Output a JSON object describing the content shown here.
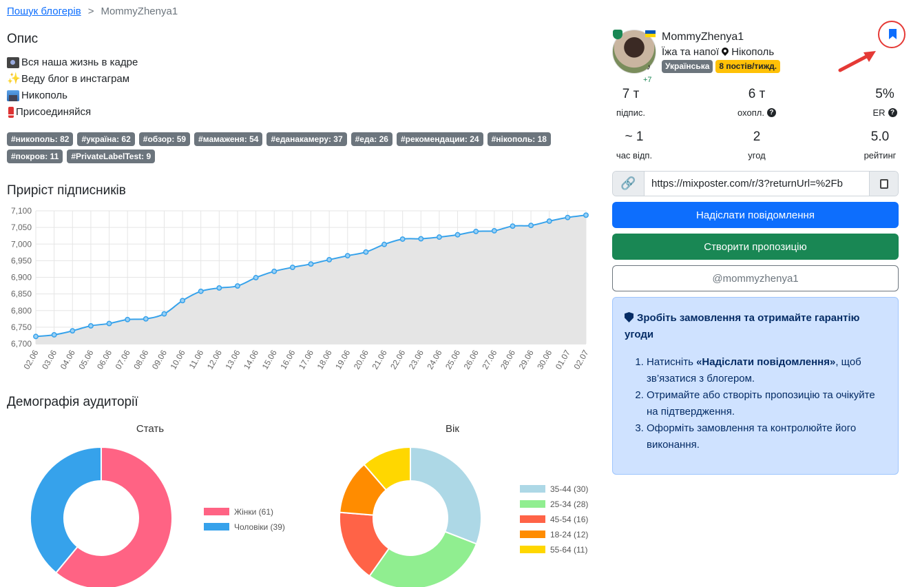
{
  "breadcrumb": {
    "link": "Пошук блогерів",
    "sep": ">",
    "current": "MommyZhenya1"
  },
  "description": {
    "title": "Опис",
    "lines": [
      {
        "icon": "camera-icon",
        "text": "Вся наша жизнь в кадре"
      },
      {
        "icon": "sparkles-icon",
        "text": "Веду блог в инстаграм"
      },
      {
        "icon": "cityscape-icon",
        "text": "Никополь"
      },
      {
        "icon": "exclamation-icon",
        "text": "Присоединяйся"
      }
    ]
  },
  "tags": [
    "#никополь: 82",
    "#україна: 62",
    "#обзор: 59",
    "#мамаженя: 54",
    "#еданакамеру: 37",
    "#еда: 26",
    "#рекомендации: 24",
    "#нікополь: 18",
    "#покров: 11",
    "#PrivateLabelTest: 9"
  ],
  "growth": {
    "title": "Приріст підписників"
  },
  "chart_data": [
    {
      "type": "area",
      "title": "Приріст підписників",
      "x": [
        "02.06",
        "03.06",
        "04.06",
        "05.06",
        "06.06",
        "07.06",
        "08.06",
        "09.06",
        "10.06",
        "11.06",
        "12.06",
        "13.06",
        "14.06",
        "15.06",
        "16.06",
        "17.06",
        "18.06",
        "19.06",
        "20.06",
        "21.06",
        "22.06",
        "23.06",
        "24.06",
        "25.06",
        "26.06",
        "27.06",
        "28.06",
        "29.06",
        "30.06",
        "01.07",
        "02.07"
      ],
      "series": [
        {
          "values": [
            6722,
            6727,
            6739,
            6754,
            6761,
            6773,
            6775,
            6790,
            6830,
            6858,
            6868,
            6874,
            6899,
            6918,
            6930,
            6940,
            6953,
            6965,
            6976,
            6999,
            7015,
            7016,
            7021,
            7028,
            7038,
            7040,
            7054,
            7056,
            7069,
            7080,
            7087
          ]
        }
      ],
      "ylim": [
        6700,
        7100
      ],
      "yticks": [
        "7,100",
        "7,050",
        "7,000",
        "6,950",
        "6,900",
        "6,850",
        "6,800",
        "6,750",
        "6,700"
      ],
      "grid": true,
      "line_color": "#36a2eb",
      "fill_color": "#e5e5e5"
    },
    {
      "type": "pie",
      "title": "Стать",
      "categories": [
        "Жінки",
        "Чоловіки"
      ],
      "values": [
        61,
        39
      ],
      "legend": [
        "Жінки (61)",
        "Чоловіки (39)"
      ],
      "colors": [
        "#ff6384",
        "#36a2eb"
      ],
      "legend_position": "right"
    },
    {
      "type": "pie",
      "title": "Вік",
      "categories": [
        "35-44",
        "25-34",
        "45-54",
        "18-24",
        "55-64"
      ],
      "values": [
        30,
        28,
        16,
        12,
        11
      ],
      "legend": [
        "35-44 (30)",
        "25-34 (28)",
        "45-54 (16)",
        "18-24 (12)",
        "55-64 (11)"
      ],
      "colors": [
        "#add8e6",
        "#90ee90",
        "#ff6347",
        "#ff8c00",
        "#ffd700"
      ],
      "legend_position": "right"
    }
  ],
  "demography": {
    "title": "Демографія аудиторії"
  },
  "profile": {
    "name": "MommyZhenya1",
    "category": "Їжа та напої",
    "city": "Нікополь",
    "language_badge": "Українська",
    "posts_badge": "8 постів/тижд.",
    "extra_networks": "+7",
    "tiktok_glyph": "♪"
  },
  "stats": [
    {
      "value": "7 т",
      "label": "підпис.",
      "help": false
    },
    {
      "value": "6 т",
      "label": "охопл.",
      "help": true
    },
    {
      "value": "5%",
      "label": "ER",
      "help": true
    },
    {
      "value": "~ 1",
      "label": "час відп.",
      "help": false
    },
    {
      "value": "2",
      "label": "угод",
      "help": false
    },
    {
      "value": "5.0",
      "label": "рейтинг",
      "help": false
    }
  ],
  "referral": {
    "url": "https://mixposter.com/r/3?returnUrl=%2Fb",
    "link_glyph": "🔗"
  },
  "buttons": {
    "message": "Надіслати повідомлення",
    "offer": "Створити пропозицію",
    "handle": "@mommyzhenya1"
  },
  "guarantee": {
    "title": "Зробіть замовлення та отримайте гарантію угоди",
    "step1_pre": "Натисніть ",
    "step1_bold": "«Надіслати повідомлення»",
    "step1_post": ", щоб зв’язатися з блогером.",
    "step2": "Отримайте або створіть пропозицію та очікуйте на підтвердження.",
    "step3": "Оформіть замовлення та контролюйте його виконання."
  },
  "colors": {
    "primary": "#0d6efd",
    "success": "#198754",
    "tag_bg": "#6c757d",
    "alert_bg": "#cfe2ff",
    "annotation": "#e53935"
  }
}
